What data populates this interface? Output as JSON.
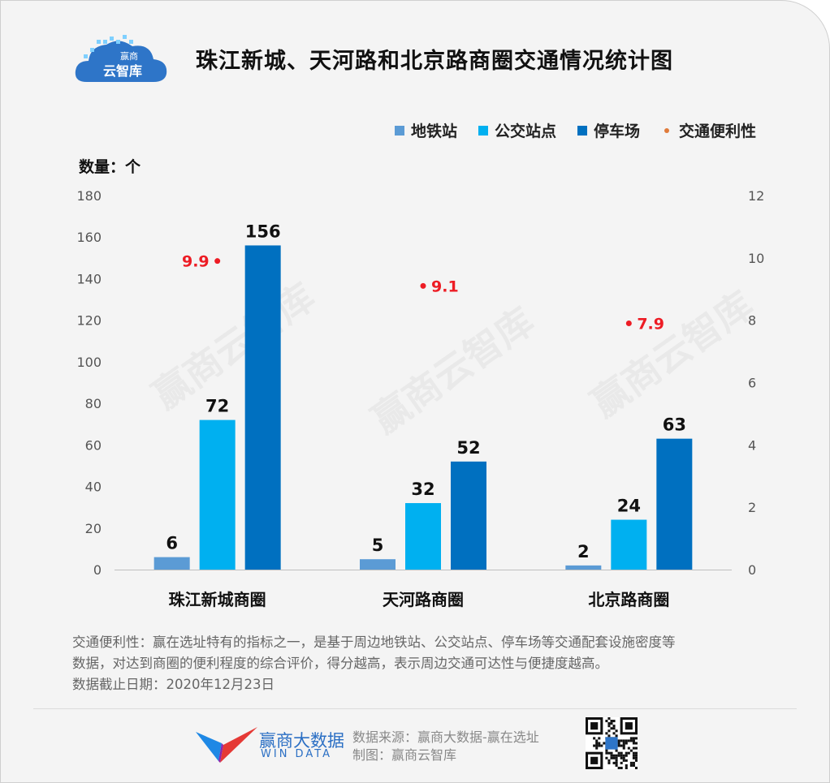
{
  "header": {
    "logo_text_top": "赢商",
    "logo_text_bottom": "云智库",
    "title": "珠江新城、天河路和北京路商圈交通情况统计图"
  },
  "watermark": "赢商云智库",
  "chart_data": {
    "type": "bar",
    "categories": [
      "珠江新城商圈",
      "天河路商圈",
      "北京路商圈"
    ],
    "series": [
      {
        "name": "地铁站",
        "values": [
          6,
          5,
          2
        ],
        "color": "#5b9bd5",
        "axis": "left"
      },
      {
        "name": "公交站点",
        "values": [
          72,
          32,
          24
        ],
        "color": "#00b0f0",
        "axis": "left"
      },
      {
        "name": "停车场",
        "values": [
          156,
          52,
          63
        ],
        "color": "#0070c0",
        "axis": "left"
      }
    ],
    "overlay": {
      "name": "交通便利性",
      "type": "scatter",
      "values": [
        9.9,
        9.1,
        7.9
      ],
      "color": "#ed1c24",
      "legend_color": "#e07b3a",
      "axis": "right"
    },
    "ylabel": "数量：个",
    "ylim": [
      0,
      180
    ],
    "yticks": [
      "180",
      "160",
      "140",
      "120",
      "100",
      "80",
      "60",
      "40",
      "20",
      "0"
    ],
    "y2lim": [
      0,
      12
    ],
    "y2ticks": [
      "12",
      "10",
      "8",
      "6",
      "4",
      "2",
      "0"
    ],
    "legend_position": "top-right",
    "grid": false
  },
  "note": {
    "line1": "交通便利性：赢在选址特有的指标之一，是基于周边地铁站、公交站点、停车场等交通配套设施密度等",
    "line2": "数据，对达到商圈的便利程度的综合评价，得分越高，表示周边交通可达性与便捷度越高。",
    "line3": "数据截止日期：2020年12月23日"
  },
  "footer": {
    "brand": "赢商大数据",
    "brand_en": "WIN DATA",
    "source": "数据来源：赢商大数据-赢在选址",
    "credit": "制图：赢商云智库"
  }
}
